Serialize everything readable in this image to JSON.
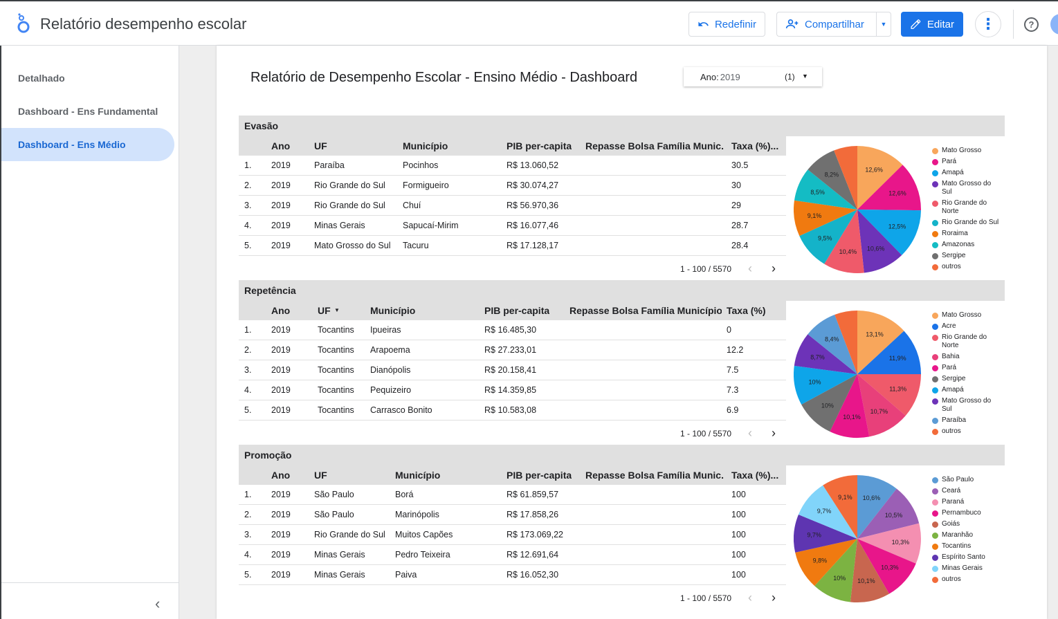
{
  "header": {
    "title": "Relatório desempenho escolar",
    "reset_label": "Redefinir",
    "share_label": "Compartilhar",
    "edit_label": "Editar"
  },
  "sidebar": {
    "items": [
      {
        "label": "Detalhado",
        "active": false
      },
      {
        "label": "Dashboard - Ens Fundamental",
        "active": false
      },
      {
        "label": "Dashboard - Ens Médio",
        "active": true
      }
    ]
  },
  "report": {
    "title": "Relatório de Desempenho Escolar - Ensino Médio - Dashboard",
    "filter": {
      "label": "Ano:",
      "value": "2019",
      "count": "(1)"
    }
  },
  "sections": [
    {
      "name": "Evasão",
      "columns": [
        "Ano",
        "UF",
        "Município",
        "PIB per-capita",
        "Repasse Bolsa Família Munic...",
        "Taxa (%)..."
      ],
      "sort_col": -1,
      "rows": [
        [
          "1.",
          "2019",
          "Paraíba",
          "Pocinhos",
          "R$ 13.060,52",
          "",
          "30.5"
        ],
        [
          "2.",
          "2019",
          "Rio Grande do Sul",
          "Formigueiro",
          "R$ 30.074,27",
          "",
          "30"
        ],
        [
          "3.",
          "2019",
          "Rio Grande do Sul",
          "Chuí",
          "R$ 56.970,36",
          "",
          "29"
        ],
        [
          "4.",
          "2019",
          "Minas Gerais",
          "Sapucaí-Mirim",
          "R$ 16.077,46",
          "",
          "28.7"
        ],
        [
          "5.",
          "2019",
          "Mato Grosso do Sul",
          "Tacuru",
          "R$ 17.128,17",
          "",
          "28.4"
        ]
      ],
      "pager": "1 - 100 / 5570",
      "pie": {
        "slices": [
          {
            "label": "Mato Grosso",
            "value": 12.6,
            "text": "12,6%",
            "color": "#f8a65b"
          },
          {
            "label": "Pará",
            "value": 12.6,
            "text": "12,6%",
            "color": "#e8168a"
          },
          {
            "label": "Amapá",
            "value": 12.5,
            "text": "12,5%",
            "color": "#0ea5e9"
          },
          {
            "label": "Mato Grosso do Sul",
            "value": 10.6,
            "text": "10,6%",
            "color": "#6d33b8"
          },
          {
            "label": "Rio Grande do Norte",
            "value": 10.4,
            "text": "10,4%",
            "color": "#ef5a6a"
          },
          {
            "label": "Rio Grande do Sul",
            "value": 9.5,
            "text": "9,5%",
            "color": "#14b3c9"
          },
          {
            "label": "Roraima",
            "value": 9.1,
            "text": "9,1%",
            "color": "#f07a10"
          },
          {
            "label": "Amazonas",
            "value": 8.5,
            "text": "8,5%",
            "color": "#14bcc4"
          },
          {
            "label": "Sergipe",
            "value": 8.2,
            "text": "8,2%",
            "color": "#707070"
          },
          {
            "label": "outros",
            "value": 6.0,
            "text": "",
            "color": "#f26b3a"
          }
        ]
      }
    },
    {
      "name": "Repetência",
      "columns": [
        "Ano",
        "UF",
        "Município",
        "PIB per-capita",
        "Repasse Bolsa Família Município",
        "Taxa (%)"
      ],
      "sort_col": 1,
      "rows": [
        [
          "1.",
          "2019",
          "Tocantins",
          "Ipueiras",
          "R$ 16.485,30",
          "",
          "0"
        ],
        [
          "2.",
          "2019",
          "Tocantins",
          "Arapoema",
          "R$ 27.233,01",
          "",
          "12.2"
        ],
        [
          "3.",
          "2019",
          "Tocantins",
          "Dianópolis",
          "R$ 20.158,41",
          "",
          "7.5"
        ],
        [
          "4.",
          "2019",
          "Tocantins",
          "Pequizeiro",
          "R$ 14.359,85",
          "",
          "7.3"
        ],
        [
          "5.",
          "2019",
          "Tocantins",
          "Carrasco Bonito",
          "R$ 10.583,08",
          "",
          "6.9"
        ]
      ],
      "pager": "1 - 100 / 5570",
      "pie": {
        "slices": [
          {
            "label": "Mato Grosso",
            "value": 13.1,
            "text": "13,1%",
            "color": "#f8a65b"
          },
          {
            "label": "Acre",
            "value": 11.9,
            "text": "11,9%",
            "color": "#1a73e8"
          },
          {
            "label": "Rio Grande do Norte",
            "value": 11.3,
            "text": "11,3%",
            "color": "#ef5a6a"
          },
          {
            "label": "Bahia",
            "value": 10.7,
            "text": "10,7%",
            "color": "#e8407a"
          },
          {
            "label": "Pará",
            "value": 10.1,
            "text": "10,1%",
            "color": "#e8168a"
          },
          {
            "label": "Sergipe",
            "value": 10.0,
            "text": "10%",
            "color": "#707070"
          },
          {
            "label": "Amapá",
            "value": 10.0,
            "text": "10%",
            "color": "#0ea5e9"
          },
          {
            "label": "Mato Grosso do Sul",
            "value": 8.7,
            "text": "8,7%",
            "color": "#6d33b8"
          },
          {
            "label": "Paraíba",
            "value": 8.4,
            "text": "8,4%",
            "color": "#5b9bd5"
          },
          {
            "label": "outros",
            "value": 5.8,
            "text": "",
            "color": "#f26b3a"
          }
        ]
      }
    },
    {
      "name": "Promoção",
      "columns": [
        "Ano",
        "UF",
        "Município",
        "PIB per-capita",
        "Repasse Bolsa Família Munic...",
        "Taxa (%)..."
      ],
      "sort_col": -1,
      "rows": [
        [
          "1.",
          "2019",
          "São Paulo",
          "Borá",
          "R$ 61.859,57",
          "",
          "100"
        ],
        [
          "2.",
          "2019",
          "São Paulo",
          "Marinópolis",
          "R$ 17.858,26",
          "",
          "100"
        ],
        [
          "3.",
          "2019",
          "Rio Grande do Sul",
          "Muitos Capões",
          "R$ 173.069,22",
          "",
          "100"
        ],
        [
          "4.",
          "2019",
          "Minas Gerais",
          "Pedro Teixeira",
          "R$ 12.691,64",
          "",
          "100"
        ],
        [
          "5.",
          "2019",
          "Minas Gerais",
          "Paiva",
          "R$ 16.052,30",
          "",
          "100"
        ]
      ],
      "pager": "1 - 100 / 5570",
      "pie": {
        "slices": [
          {
            "label": "São Paulo",
            "value": 10.6,
            "text": "10,6%",
            "color": "#5b9bd5"
          },
          {
            "label": "Ceará",
            "value": 10.5,
            "text": "10,5%",
            "color": "#9b5fb5"
          },
          {
            "label": "Paraná",
            "value": 10.3,
            "text": "10,3%",
            "color": "#f48fb1"
          },
          {
            "label": "Pernambuco",
            "value": 10.3,
            "text": "10,3%",
            "color": "#e8168a"
          },
          {
            "label": "Goiás",
            "value": 10.1,
            "text": "10,1%",
            "color": "#c8664f"
          },
          {
            "label": "Maranhão",
            "value": 10.0,
            "text": "10%",
            "color": "#7cb342"
          },
          {
            "label": "Tocantins",
            "value": 9.8,
            "text": "9,8%",
            "color": "#f07a10"
          },
          {
            "label": "Espírito Santo",
            "value": 9.7,
            "text": "9,7%",
            "color": "#5e35b1"
          },
          {
            "label": "Minas Gerais",
            "value": 9.7,
            "text": "9,7%",
            "color": "#81d4fa"
          },
          {
            "label": "outros",
            "value": 9.1,
            "text": "9,1%",
            "color": "#f26b3a"
          }
        ]
      }
    }
  ]
}
